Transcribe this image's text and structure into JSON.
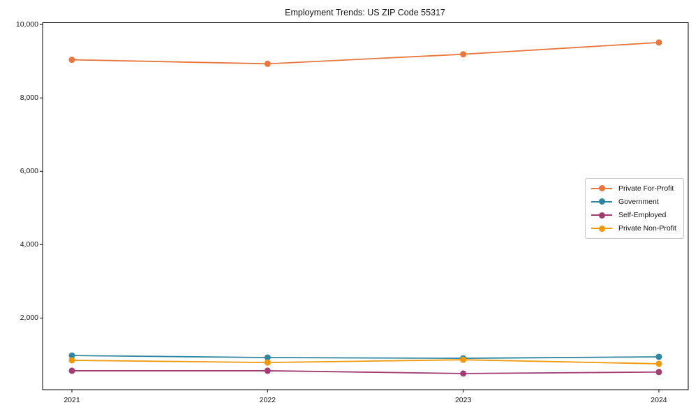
{
  "figure": {
    "background": "#ffffff",
    "axis_color": "#000000"
  },
  "chart_data": {
    "type": "line",
    "title": "Employment Trends: US ZIP Code 55317",
    "xlabel": "",
    "ylabel": "",
    "grid": false,
    "legend_position": "center right",
    "x": [
      2021,
      2022,
      2023,
      2024
    ],
    "x_labels": [
      "2021",
      "2022",
      "2023",
      "2024"
    ],
    "xlim": [
      2020.85,
      2024.15
    ],
    "ylim": [
      50,
      10050
    ],
    "yticks": [
      {
        "value": 2000,
        "label": "2,000"
      },
      {
        "value": 4000,
        "label": "4,000"
      },
      {
        "value": 6000,
        "label": "6,000"
      },
      {
        "value": 8000,
        "label": "8,000"
      },
      {
        "value": 10000,
        "label": "10,000"
      }
    ],
    "series": [
      {
        "name": "Private For-Profit",
        "color": "#E8763D",
        "values": [
          9040,
          8930,
          9190,
          9510
        ]
      },
      {
        "name": "Government",
        "color": "#2E86A0",
        "values": [
          980,
          925,
          905,
          945
        ]
      },
      {
        "name": "Self-Employed",
        "color": "#A23B72",
        "values": [
          565,
          565,
          490,
          530
        ]
      },
      {
        "name": "Private Non-Profit",
        "color": "#F0990B",
        "values": [
          850,
          790,
          865,
          755
        ]
      }
    ]
  }
}
